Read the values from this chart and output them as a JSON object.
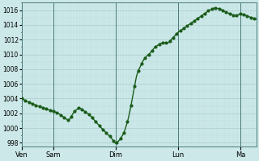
{
  "background_color": "#cce8e8",
  "grid_major_color": "#aacccc",
  "grid_minor_color": "#bbdddd",
  "line_color": "#1a5c1a",
  "line_width": 1.0,
  "marker_size": 2.0,
  "ylim": [
    997.5,
    1017.0
  ],
  "yticks": [
    998,
    1000,
    1002,
    1004,
    1006,
    1008,
    1010,
    1012,
    1014,
    1016
  ],
  "day_labels": [
    "Ven",
    "Sam",
    "Dim",
    "Lun",
    "Ma"
  ],
  "day_positions": [
    0,
    36,
    108,
    180,
    252
  ],
  "xlim": [
    0,
    270
  ],
  "vline_color": "#4a7a7a",
  "xp": [
    0,
    6,
    12,
    18,
    24,
    30,
    36,
    42,
    48,
    54,
    60,
    66,
    72,
    78,
    84,
    90,
    96,
    102,
    108,
    112,
    116,
    118,
    120,
    122,
    124,
    126,
    128,
    130,
    132,
    134,
    136,
    138,
    140,
    144,
    148,
    152,
    156,
    160,
    164,
    168,
    172,
    176,
    180,
    186,
    192,
    198,
    204,
    210,
    216,
    222,
    228,
    234,
    240,
    246,
    252,
    258,
    264,
    270
  ],
  "yp": [
    1004.0,
    1003.6,
    1003.3,
    1003.0,
    1002.8,
    1002.5,
    1002.3,
    1002.0,
    1001.5,
    1001.0,
    1002.2,
    1002.8,
    1002.3,
    1001.8,
    1001.0,
    1000.2,
    999.5,
    998.8,
    997.9,
    998.3,
    999.0,
    999.5,
    1000.2,
    1001.0,
    1002.0,
    1003.2,
    1004.5,
    1005.8,
    1007.0,
    1007.8,
    1008.2,
    1008.8,
    1009.2,
    1009.8,
    1010.2,
    1010.8,
    1011.2,
    1011.5,
    1011.6,
    1011.5,
    1012.0,
    1012.5,
    1013.0,
    1013.5,
    1014.0,
    1014.5,
    1015.0,
    1015.5,
    1016.0,
    1016.3,
    1016.2,
    1015.8,
    1015.5,
    1015.2,
    1015.5,
    1015.3,
    1015.0,
    1014.8
  ]
}
